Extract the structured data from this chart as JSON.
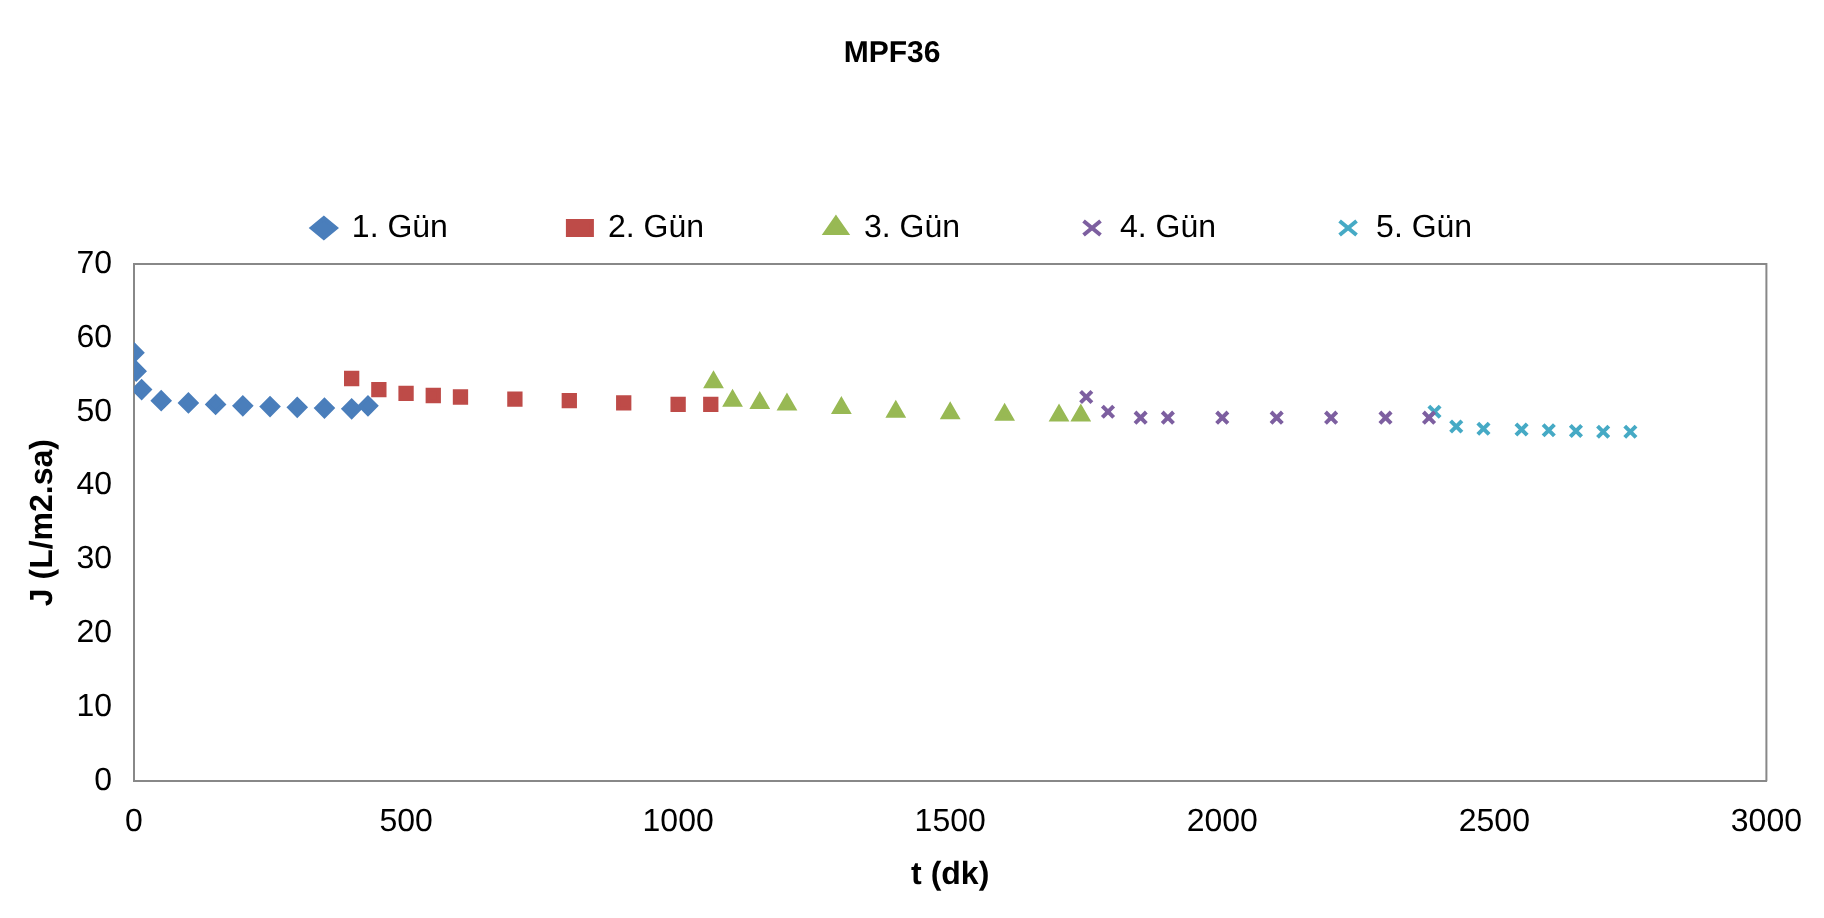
{
  "chart_data": {
    "type": "scatter",
    "title": "MPF36",
    "xlabel": "t (dk)",
    "ylabel": "J (L/m2.sa)",
    "xlim": [
      0,
      3000
    ],
    "xticks": [
      0,
      500,
      1000,
      1500,
      2000,
      2500,
      3000
    ],
    "ylim": [
      0,
      70
    ],
    "yticks": [
      0,
      10,
      20,
      30,
      40,
      50,
      60,
      70
    ],
    "grid": false,
    "legend": "top",
    "series": [
      {
        "name": "1. Gün",
        "color": "#4a7ebb",
        "marker": "diamond",
        "x": [
          0,
          4,
          14,
          50,
          100,
          150,
          200,
          250,
          300,
          350,
          400,
          430
        ],
        "values": [
          58,
          55.5,
          53,
          51.5,
          51.2,
          51,
          50.8,
          50.7,
          50.6,
          50.5,
          50.4,
          50.8
        ]
      },
      {
        "name": "2. Gün",
        "color": "#be4b48",
        "marker": "square",
        "x": [
          400,
          450,
          500,
          550,
          600,
          700,
          800,
          900,
          1000,
          1060
        ],
        "values": [
          54.5,
          53,
          52.5,
          52.2,
          52,
          51.7,
          51.5,
          51.2,
          51,
          51
        ]
      },
      {
        "name": "3. Gün",
        "color": "#98b954",
        "marker": "triangle",
        "x": [
          1065,
          1100,
          1150,
          1200,
          1300,
          1400,
          1500,
          1600,
          1700,
          1740
        ],
        "values": [
          54,
          51.5,
          51.2,
          51,
          50.5,
          50,
          49.8,
          49.6,
          49.5,
          49.5
        ]
      },
      {
        "name": "4. Gün",
        "color": "#7d5fa0",
        "marker": "cross",
        "x": [
          1750,
          1790,
          1850,
          1900,
          2000,
          2100,
          2200,
          2300,
          2380
        ],
        "values": [
          52,
          50,
          49.2,
          49.2,
          49.2,
          49.2,
          49.2,
          49.2,
          49.2
        ]
      },
      {
        "name": "5. Gün",
        "color": "#46aac5",
        "marker": "cross",
        "x": [
          2390,
          2430,
          2480,
          2550,
          2600,
          2650,
          2700,
          2750
        ],
        "values": [
          50,
          48,
          47.7,
          47.6,
          47.5,
          47.4,
          47.3,
          47.3
        ]
      }
    ]
  }
}
